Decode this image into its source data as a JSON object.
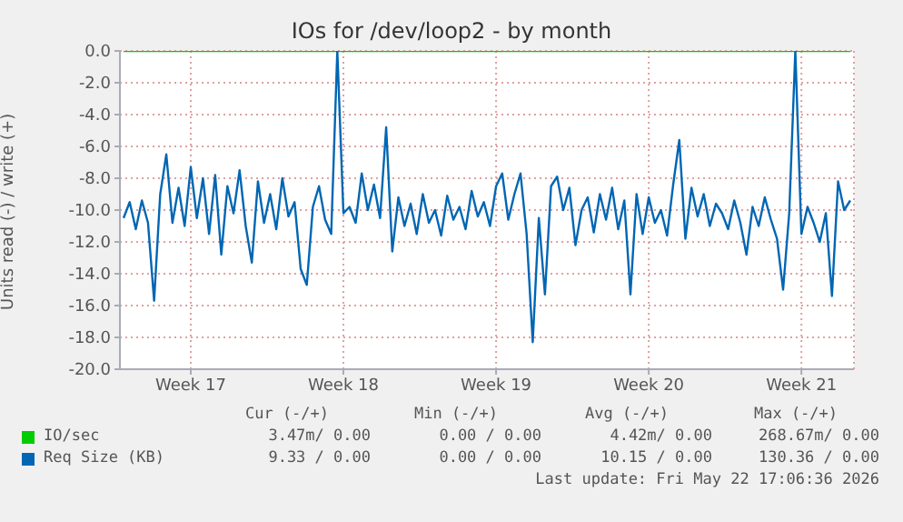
{
  "chart_data": {
    "type": "line",
    "title": "IOs for /dev/loop2 - by month",
    "ylabel": "Units read (-) / write (+)",
    "categories": [
      null,
      null,
      null,
      null,
      null,
      null,
      null,
      null,
      null,
      null,
      null,
      "Week 17",
      null,
      null,
      null,
      null,
      null,
      null,
      null,
      null,
      null,
      null,
      null,
      null,
      null,
      null,
      null,
      null,
      null,
      null,
      null,
      null,
      null,
      null,
      null,
      null,
      "Week 18",
      null,
      null,
      null,
      null,
      null,
      null,
      null,
      null,
      null,
      null,
      null,
      null,
      null,
      null,
      null,
      null,
      null,
      null,
      null,
      null,
      null,
      null,
      null,
      null,
      "Week 19",
      null,
      null,
      null,
      null,
      null,
      null,
      null,
      null,
      null,
      null,
      null,
      null,
      null,
      null,
      null,
      null,
      null,
      null,
      null,
      null,
      null,
      null,
      null,
      null,
      "Week 20",
      null,
      null,
      null,
      null,
      null,
      null,
      null,
      null,
      null,
      null,
      null,
      null,
      null,
      null,
      null,
      null,
      null,
      null,
      null,
      null,
      null,
      null,
      null,
      null,
      "Week 21",
      null,
      null,
      null,
      null,
      null,
      null,
      null,
      null
    ],
    "ylim": [
      -20,
      0
    ],
    "yticks": [
      {
        "value": -20,
        "label": "-20.0"
      },
      {
        "value": -18,
        "label": "-18.0"
      },
      {
        "value": -16,
        "label": "-16.0"
      },
      {
        "value": -14,
        "label": "-14.0"
      },
      {
        "value": -12,
        "label": "-12.0"
      },
      {
        "value": -10,
        "label": "-10.0"
      },
      {
        "value": -8,
        "label": "-8.0"
      },
      {
        "value": -6,
        "label": "-6.0"
      },
      {
        "value": -4,
        "label": "-4.0"
      },
      {
        "value": -2,
        "label": "-2.0"
      },
      {
        "value": 0,
        "label": "0.0"
      }
    ],
    "grid": true,
    "legend": "bottom",
    "marker": "none",
    "line_style": "solid",
    "series": [
      {
        "name": "IO/sec",
        "color": "#00cc00",
        "values": [
          0,
          0,
          0,
          0,
          0,
          0,
          0,
          0,
          0,
          0,
          0,
          0,
          0,
          0,
          0,
          0,
          0,
          0,
          0,
          0,
          0,
          0,
          0,
          0,
          0,
          0,
          0,
          0,
          0,
          0,
          0,
          0,
          0,
          0,
          0,
          0,
          0,
          0,
          0,
          0,
          0,
          0,
          0,
          0,
          0,
          0,
          0,
          0,
          0,
          0,
          0,
          0,
          0,
          0,
          0,
          0,
          0,
          0,
          0,
          0,
          0,
          0,
          0,
          0,
          0,
          0,
          0,
          0,
          0,
          0,
          0,
          0,
          0,
          0,
          0,
          0,
          0,
          0,
          0,
          0,
          0,
          0,
          0,
          0,
          0,
          0,
          0,
          0,
          0,
          0,
          0,
          0,
          0,
          0,
          0,
          0,
          0,
          0,
          0,
          0,
          0,
          0,
          0,
          0,
          0,
          0,
          0,
          0,
          0,
          0,
          0,
          0,
          0,
          0,
          0,
          0,
          0,
          0,
          0,
          0
        ]
      },
      {
        "name": "Req Size (KB)",
        "color": "#0066b3",
        "values": [
          -10.5,
          -9.5,
          -11.2,
          -9.4,
          -10.8,
          -15.7,
          -9.0,
          -6.5,
          -10.8,
          -8.6,
          -11.0,
          -7.3,
          -10.5,
          -8.0,
          -11.5,
          -7.8,
          -12.8,
          -8.5,
          -10.2,
          -7.5,
          -11.0,
          -13.3,
          -8.2,
          -10.8,
          -9.0,
          -11.2,
          -8.0,
          -10.4,
          -9.5,
          -13.7,
          -14.7,
          -9.8,
          -8.5,
          -10.6,
          -11.5,
          0,
          -10.2,
          -9.8,
          -10.8,
          -7.7,
          -10.0,
          -8.4,
          -10.5,
          -4.8,
          -12.6,
          -9.2,
          -11.0,
          -9.6,
          -11.5,
          -9.0,
          -10.8,
          -10.0,
          -11.6,
          -9.1,
          -10.6,
          -9.8,
          -11.2,
          -8.8,
          -10.4,
          -9.5,
          -11.0,
          -8.5,
          -7.7,
          -10.6,
          -9.0,
          -7.7,
          -11.5,
          -18.3,
          -10.5,
          -15.3,
          -8.5,
          -7.9,
          -10.0,
          -8.6,
          -12.2,
          -10.0,
          -9.2,
          -11.4,
          -9.0,
          -10.6,
          -8.6,
          -11.2,
          -9.4,
          -15.3,
          -9.0,
          -11.5,
          -9.2,
          -10.8,
          -10.0,
          -11.6,
          -8.4,
          -5.6,
          -11.8,
          -8.6,
          -10.4,
          -9.0,
          -11.0,
          -9.6,
          -10.2,
          -11.2,
          -9.4,
          -10.8,
          -12.8,
          -9.8,
          -11.0,
          -9.2,
          -10.6,
          -11.8,
          -15.0,
          -10.2,
          0,
          -11.5,
          -9.8,
          -10.8,
          -12.0,
          -10.2,
          -15.4,
          -8.2,
          -10.0,
          -9.4
        ]
      }
    ],
    "annotations": [
      "Cur (-/+)",
      "Min (-/+)",
      "Avg (-/+)",
      "Max (-/+)",
      "3.47m/ 0.00",
      "0.00 / 0.00",
      "4.42m/ 0.00",
      "268.67m/ 0.00",
      "9.33 / 0.00",
      "0.00 / 0.00",
      "10.15 / 0.00",
      "130.36 / 0.00",
      "Last update: Fri May 22 17:06:36 2026"
    ]
  }
}
